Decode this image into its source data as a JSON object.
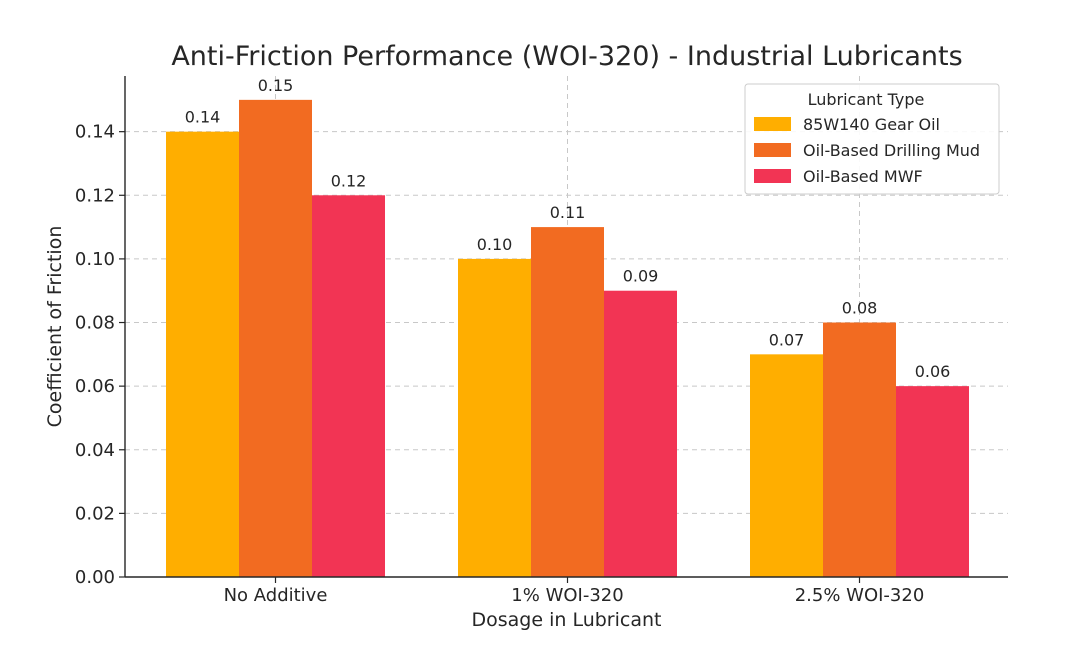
{
  "chart_data": {
    "type": "bar",
    "title": "Anti-Friction Performance (WOI-320) - Industrial Lubricants",
    "xlabel": "Dosage in Lubricant",
    "ylabel": "Coefficient of Friction",
    "categories": [
      "No Additive",
      "1% WOI-320",
      "2.5% WOI-320"
    ],
    "series": [
      {
        "name": "85W140 Gear Oil",
        "color": "#FFAE00",
        "values": [
          0.14,
          0.1,
          0.07
        ],
        "labels": [
          "0.14",
          "0.10",
          "0.07"
        ]
      },
      {
        "name": "Oil-Based Drilling Mud",
        "color": "#F26B21",
        "values": [
          0.15,
          0.11,
          0.08
        ],
        "labels": [
          "0.15",
          "0.11",
          "0.08"
        ]
      },
      {
        "name": "Oil-Based MWF",
        "color": "#F23454",
        "values": [
          0.12,
          0.09,
          0.06
        ],
        "labels": [
          "0.12",
          "0.09",
          "0.06"
        ]
      }
    ],
    "ylim": [
      0,
      0.1575
    ],
    "yticks": [
      0.0,
      0.02,
      0.04,
      0.06,
      0.08,
      0.1,
      0.12,
      0.14
    ],
    "ytick_labels": [
      "0.00",
      "0.02",
      "0.04",
      "0.06",
      "0.08",
      "0.10",
      "0.12",
      "0.14"
    ],
    "grid": true,
    "legend": {
      "title": "Lubricant Type",
      "placement": "top-right"
    }
  }
}
